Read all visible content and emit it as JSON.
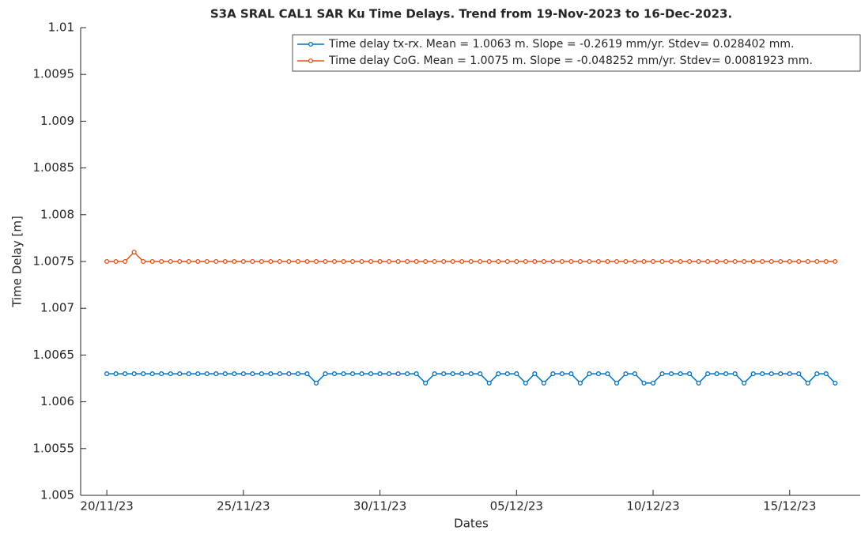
{
  "chart_data": {
    "type": "line",
    "title": "S3A SRAL CAL1 SAR Ku Time Delays. Trend from 19-Nov-2023 to 16-Dec-2023.",
    "xlabel": "Dates",
    "ylabel": "Time Delay [m]",
    "x": [
      "2023-11-20T00:00",
      "2023-11-20T08:00",
      "2023-11-20T16:00",
      "2023-11-21T00:00",
      "2023-11-21T08:00",
      "2023-11-21T16:00",
      "2023-11-22T00:00",
      "2023-11-22T08:00",
      "2023-11-22T16:00",
      "2023-11-23T00:00",
      "2023-11-23T08:00",
      "2023-11-23T16:00",
      "2023-11-24T00:00",
      "2023-11-24T08:00",
      "2023-11-24T16:00",
      "2023-11-25T00:00",
      "2023-11-25T08:00",
      "2023-11-25T16:00",
      "2023-11-26T00:00",
      "2023-11-26T08:00",
      "2023-11-26T16:00",
      "2023-11-27T00:00",
      "2023-11-27T08:00",
      "2023-11-27T16:00",
      "2023-11-28T00:00",
      "2023-11-28T08:00",
      "2023-11-28T16:00",
      "2023-11-29T00:00",
      "2023-11-29T08:00",
      "2023-11-29T16:00",
      "2023-11-30T00:00",
      "2023-11-30T08:00",
      "2023-11-30T16:00",
      "2023-12-01T00:00",
      "2023-12-01T08:00",
      "2023-12-01T16:00",
      "2023-12-02T00:00",
      "2023-12-02T08:00",
      "2023-12-02T16:00",
      "2023-12-03T00:00",
      "2023-12-03T08:00",
      "2023-12-03T16:00",
      "2023-12-04T00:00",
      "2023-12-04T08:00",
      "2023-12-04T16:00",
      "2023-12-05T00:00",
      "2023-12-05T08:00",
      "2023-12-05T16:00",
      "2023-12-06T00:00",
      "2023-12-06T08:00",
      "2023-12-06T16:00",
      "2023-12-07T00:00",
      "2023-12-07T08:00",
      "2023-12-07T16:00",
      "2023-12-08T00:00",
      "2023-12-08T08:00",
      "2023-12-08T16:00",
      "2023-12-09T00:00",
      "2023-12-09T08:00",
      "2023-12-09T16:00",
      "2023-12-10T00:00",
      "2023-12-10T08:00",
      "2023-12-10T16:00",
      "2023-12-11T00:00",
      "2023-12-11T08:00",
      "2023-12-11T16:00",
      "2023-12-12T00:00",
      "2023-12-12T08:00",
      "2023-12-12T16:00",
      "2023-12-13T00:00",
      "2023-12-13T08:00",
      "2023-12-13T16:00",
      "2023-12-14T00:00",
      "2023-12-14T08:00",
      "2023-12-14T16:00",
      "2023-12-15T00:00",
      "2023-12-15T08:00",
      "2023-12-15T16:00",
      "2023-12-16T00:00",
      "2023-12-16T08:00",
      "2023-12-16T16:00"
    ],
    "series": [
      {
        "name": "Time delay tx-rx. Mean = 1.0063 m. Slope = -0.2619 mm/yr. Stdev= 0.028402 mm.",
        "color": "#0072bd",
        "values": [
          1.0063,
          1.0063,
          1.0063,
          1.0063,
          1.0063,
          1.0063,
          1.0063,
          1.0063,
          1.0063,
          1.0063,
          1.0063,
          1.0063,
          1.0063,
          1.0063,
          1.0063,
          1.0063,
          1.0063,
          1.0063,
          1.0063,
          1.0063,
          1.0063,
          1.0063,
          1.0063,
          1.0062,
          1.0063,
          1.0063,
          1.0063,
          1.0063,
          1.0063,
          1.0063,
          1.0063,
          1.0063,
          1.0063,
          1.0063,
          1.0063,
          1.0062,
          1.0063,
          1.0063,
          1.0063,
          1.0063,
          1.0063,
          1.0063,
          1.0062,
          1.0063,
          1.0063,
          1.0063,
          1.0062,
          1.0063,
          1.0062,
          1.0063,
          1.0063,
          1.0063,
          1.0062,
          1.0063,
          1.0063,
          1.0063,
          1.0062,
          1.0063,
          1.0063,
          1.0062,
          1.0062,
          1.0063,
          1.0063,
          1.0063,
          1.0063,
          1.0062,
          1.0063,
          1.0063,
          1.0063,
          1.0063,
          1.0062,
          1.0063,
          1.0063,
          1.0063,
          1.0063,
          1.0063,
          1.0063,
          1.0062,
          1.0063,
          1.0063,
          1.0062
        ]
      },
      {
        "name": "Time delay CoG. Mean = 1.0075 m. Slope = -0.048252 mm/yr. Stdev= 0.0081923 mm.",
        "color": "#d95319",
        "values": [
          1.0075,
          1.0075,
          1.0075,
          1.0076,
          1.0075,
          1.0075,
          1.0075,
          1.0075,
          1.0075,
          1.0075,
          1.0075,
          1.0075,
          1.0075,
          1.0075,
          1.0075,
          1.0075,
          1.0075,
          1.0075,
          1.0075,
          1.0075,
          1.0075,
          1.0075,
          1.0075,
          1.0075,
          1.0075,
          1.0075,
          1.0075,
          1.0075,
          1.0075,
          1.0075,
          1.0075,
          1.0075,
          1.0075,
          1.0075,
          1.0075,
          1.0075,
          1.0075,
          1.0075,
          1.0075,
          1.0075,
          1.0075,
          1.0075,
          1.0075,
          1.0075,
          1.0075,
          1.0075,
          1.0075,
          1.0075,
          1.0075,
          1.0075,
          1.0075,
          1.0075,
          1.0075,
          1.0075,
          1.0075,
          1.0075,
          1.0075,
          1.0075,
          1.0075,
          1.0075,
          1.0075,
          1.0075,
          1.0075,
          1.0075,
          1.0075,
          1.0075,
          1.0075,
          1.0075,
          1.0075,
          1.0075,
          1.0075,
          1.0075,
          1.0075,
          1.0075,
          1.0075,
          1.0075,
          1.0075,
          1.0075,
          1.0075,
          1.0075,
          1.0075
        ]
      }
    ],
    "xlim": [
      "2023-11-19T01:00",
      "2023-12-17T14:00"
    ],
    "xticks": [
      {
        "value": "2023-11-20T00:00",
        "label": "20/11/23"
      },
      {
        "value": "2023-11-25T00:00",
        "label": "25/11/23"
      },
      {
        "value": "2023-11-30T00:00",
        "label": "30/11/23"
      },
      {
        "value": "2023-12-05T00:00",
        "label": "05/12/23"
      },
      {
        "value": "2023-12-10T00:00",
        "label": "10/12/23"
      },
      {
        "value": "2023-12-15T00:00",
        "label": "15/12/23"
      }
    ],
    "ylim": [
      1.005,
      1.01
    ],
    "yticks": [
      1.005,
      1.0055,
      1.006,
      1.0065,
      1.007,
      1.0075,
      1.008,
      1.0085,
      1.009,
      1.0095,
      1.01
    ],
    "grid": false,
    "legend": "upper right"
  }
}
